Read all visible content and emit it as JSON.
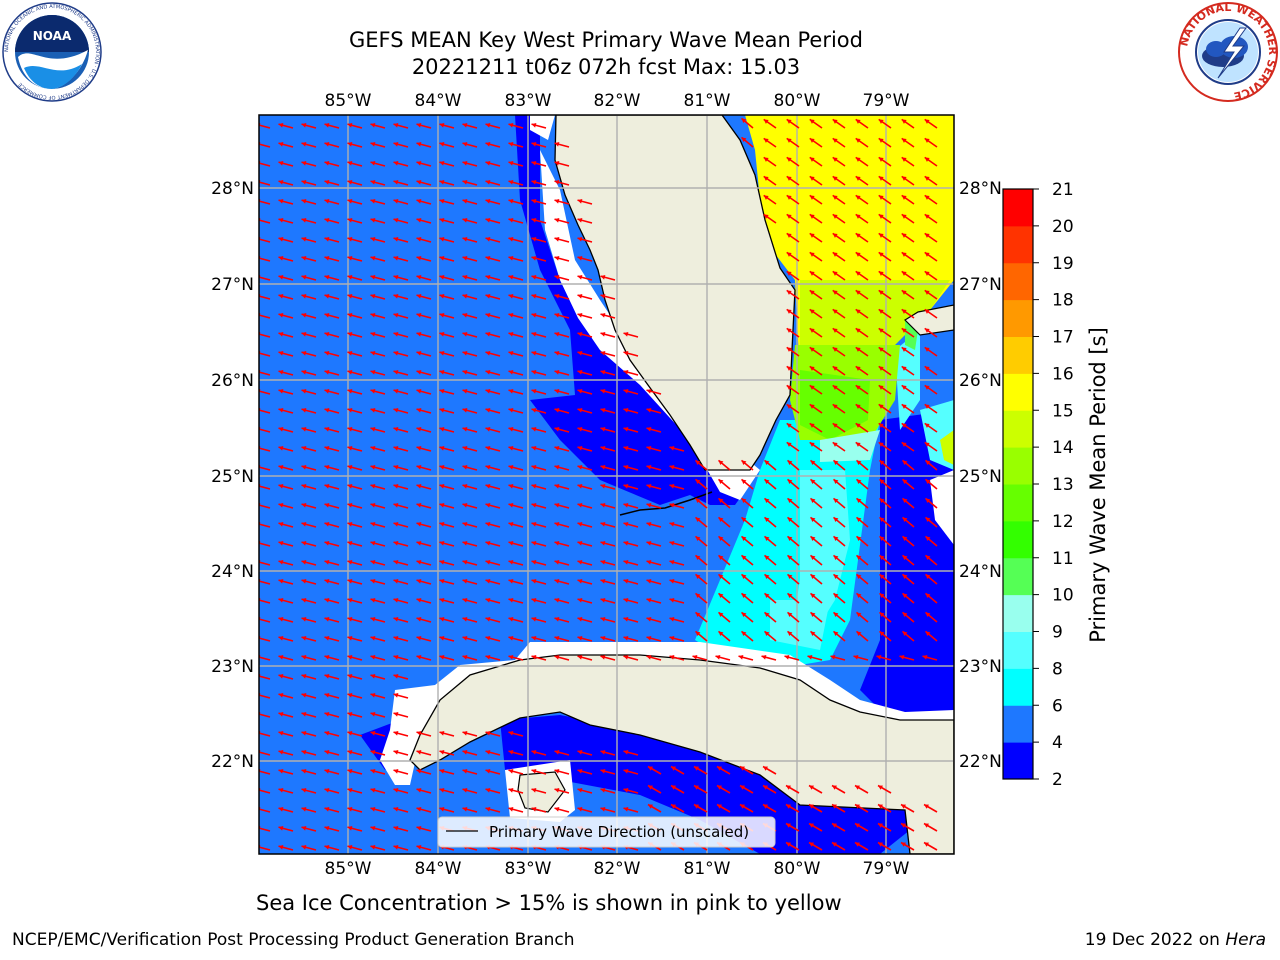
{
  "title": {
    "line1": "GEFS MEAN Key West Primary Wave Mean Period",
    "line2": "20221211 t06z 072h fcst   Max: 15.03"
  },
  "map": {
    "lon_labels": [
      "85°W",
      "84°W",
      "83°W",
      "82°W",
      "81°W",
      "80°W",
      "79°W"
    ],
    "lat_labels": [
      "28°N",
      "27°N",
      "26°N",
      "25°N",
      "24°N",
      "23°N",
      "22°N"
    ],
    "legend_label": "Primary Wave Direction (unscaled)",
    "arrow_color": "#ff0000",
    "land_color": "#eeeedd"
  },
  "colorbar": {
    "label": "Primary Wave Mean Period [s]",
    "ticks": [
      "2",
      "4",
      "6",
      "8",
      "9",
      "10",
      "11",
      "12",
      "13",
      "14",
      "15",
      "16",
      "17",
      "18",
      "19",
      "20",
      "21"
    ],
    "colors": [
      "#0000ff",
      "#1e78ff",
      "#00ffff",
      "#55ffff",
      "#99ffee",
      "#55ff55",
      "#33ff00",
      "#66ff00",
      "#99ff00",
      "#ccff00",
      "#ffff00",
      "#ffcc00",
      "#ff9900",
      "#ff6600",
      "#ff3300",
      "#ff0000"
    ]
  },
  "caption": "Sea Ice Concentration > 15% is shown in pink to yellow",
  "credits": {
    "left": "NCEP/EMC/Verification Post Processing Product Generation Branch",
    "date": "19 Dec 2022 on ",
    "machine": "Hera"
  },
  "logos": {
    "noaa_text": "NOAA",
    "noaa_ring": "NATIONAL OCEANIC AND ATMOSPHERIC ADMINISTRATION · U.S. DEPARTMENT OF COMMERCE",
    "nws_ring": "NATIONAL WEATHER SERVICE"
  }
}
